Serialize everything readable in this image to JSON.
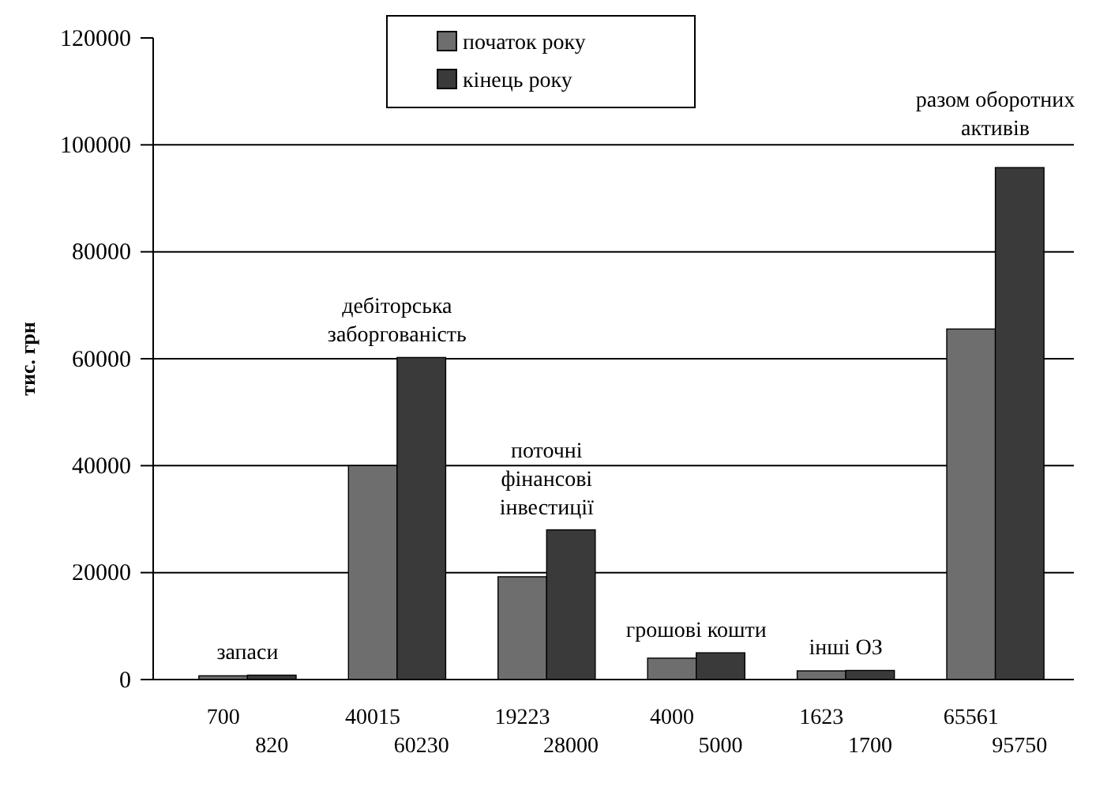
{
  "chart_data": {
    "type": "bar",
    "ylabel": "тис. грн",
    "categories": [
      "запаси",
      "дебіторська заборгованість",
      "поточні фінансові інвестиції",
      "грошові кошти",
      "інші ОЗ",
      "разом оборотних активів"
    ],
    "series": [
      {
        "name": "початок року",
        "color": "#6e6e6e",
        "values": [
          700,
          40015,
          19223,
          4000,
          1623,
          65561
        ],
        "value_labels": [
          "700",
          "40015",
          "19223",
          "4000",
          "1623",
          "65561"
        ]
      },
      {
        "name": "кінець року",
        "color": "#3a3a3a",
        "values": [
          820,
          60230,
          28000,
          5000,
          1700,
          95750
        ],
        "value_labels": [
          "820",
          "60230",
          "28000",
          "5000",
          "1700",
          "95750"
        ]
      }
    ],
    "ylim": [
      0,
      120000
    ],
    "yticks": [
      0,
      20000,
      40000,
      60000,
      80000,
      100000,
      120000
    ],
    "grid": "y",
    "legend": "top"
  }
}
